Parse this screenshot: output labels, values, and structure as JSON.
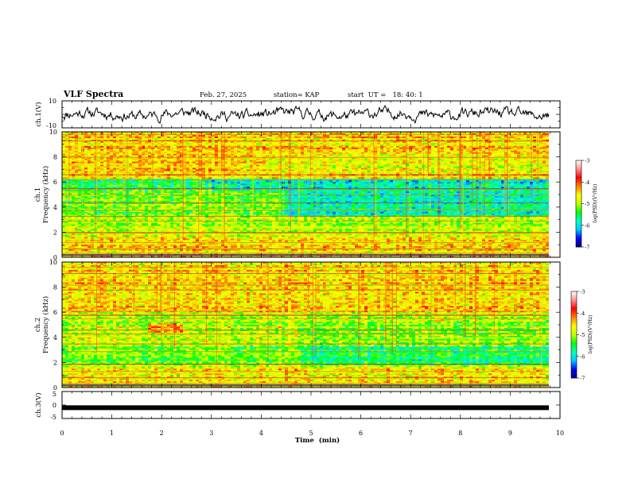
{
  "header": {
    "title": "VLF Spectra",
    "date": "Feb. 27, 2025",
    "station": "station= KAP",
    "start_ut": "start  UT =   18: 40: 1"
  },
  "chart_data": [
    {
      "type": "line",
      "name": "ch1-waveform",
      "ylabel": "ch.1(V)",
      "ylim": [
        -10,
        10
      ],
      "yticks": [
        "10",
        "-10"
      ],
      "xlim": [
        0,
        10
      ],
      "color": "#000000"
    },
    {
      "type": "heatmap",
      "name": "ch1-spectrogram",
      "ylabel_line1": "ch.1",
      "ylabel_line2": "Frequency (kHz)",
      "ylim": [
        0,
        10
      ],
      "yticks": [
        "0",
        "2",
        "4",
        "6",
        "8",
        "10"
      ],
      "xlim": [
        0,
        10
      ],
      "colorbar": {
        "label": "log(PSD)(V²/Hz)",
        "ticks": [
          "-3",
          "-4",
          "-5",
          "-6",
          "-7"
        ],
        "range": [
          -7,
          -3
        ]
      }
    },
    {
      "type": "heatmap",
      "name": "ch2-spectrogram",
      "ylabel_line1": "ch.2",
      "ylabel_line2": "Frequency (kHz)",
      "ylim": [
        0,
        10
      ],
      "yticks": [
        "0",
        "2",
        "4",
        "6",
        "8",
        "10"
      ],
      "xlim": [
        0,
        10
      ],
      "colorbar": {
        "label": "log(PSD)(V²/Hz)",
        "ticks": [
          "-3",
          "-4",
          "-5",
          "-6",
          "-7"
        ],
        "range": [
          -7,
          -3
        ]
      }
    },
    {
      "type": "line",
      "name": "ch3-waveform",
      "ylabel": "ch.3(V)",
      "ylim": [
        -5,
        5
      ],
      "yticks": [
        "5",
        "0",
        "-5"
      ],
      "xlim": [
        0,
        10
      ],
      "xticks": [
        "0",
        "1",
        "2",
        "3",
        "4",
        "5",
        "6",
        "7",
        "8",
        "9",
        "10"
      ],
      "xlabel": "Time  (min)",
      "level": -1,
      "color": "#000000"
    }
  ],
  "colors": {
    "colormap": [
      "#000080",
      "#0000ff",
      "#00c8ff",
      "#00ffc8",
      "#00ff00",
      "#c8ff00",
      "#ffff00",
      "#ff8000",
      "#ff0000",
      "#ff9090",
      "#ffffff"
    ]
  }
}
